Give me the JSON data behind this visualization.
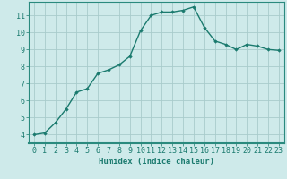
{
  "x": [
    0,
    1,
    2,
    3,
    4,
    5,
    6,
    7,
    8,
    9,
    10,
    11,
    12,
    13,
    14,
    15,
    16,
    17,
    18,
    19,
    20,
    21,
    22,
    23
  ],
  "y": [
    4.0,
    4.1,
    4.7,
    5.5,
    6.5,
    6.7,
    7.6,
    7.8,
    8.1,
    8.6,
    10.1,
    11.0,
    11.2,
    11.2,
    11.3,
    11.5,
    10.3,
    9.5,
    9.3,
    9.0,
    9.3,
    9.2,
    9.0,
    8.95
  ],
  "line_color": "#1a7a6e",
  "marker": "D",
  "marker_size": 1.8,
  "bg_color": "#ceeaea",
  "grid_color": "#a8cccc",
  "xlabel": "Humidex (Indice chaleur)",
  "xlabel_fontsize": 6.5,
  "ylabel_ticks": [
    4,
    5,
    6,
    7,
    8,
    9,
    10,
    11
  ],
  "xtick_labels": [
    "0",
    "1",
    "2",
    "3",
    "4",
    "5",
    "6",
    "7",
    "8",
    "9",
    "10",
    "11",
    "12",
    "13",
    "14",
    "15",
    "16",
    "17",
    "18",
    "19",
    "20",
    "21",
    "22",
    "23"
  ],
  "ylim": [
    3.5,
    11.8
  ],
  "xlim": [
    -0.5,
    23.5
  ],
  "tick_fontsize": 6,
  "axis_color": "#1a7a6e",
  "spine_color": "#2a8a7e",
  "linewidth": 1.0
}
